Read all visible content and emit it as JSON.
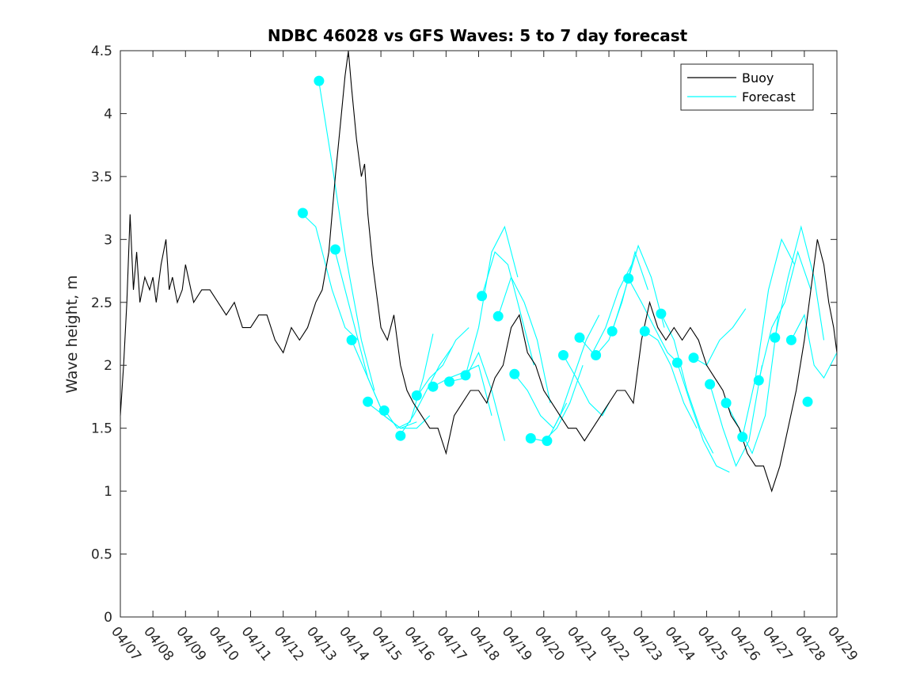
{
  "chart_data": {
    "type": "line",
    "title": "NDBC 46028 vs GFS Waves: 5 to 7 day forecast",
    "xlabel": "",
    "ylabel": "Wave height, m",
    "xlim": [
      0,
      22
    ],
    "ylim": [
      0,
      4.5
    ],
    "x_tick_labels": [
      "04/07",
      "04/08",
      "04/09",
      "04/10",
      "04/11",
      "04/12",
      "04/13",
      "04/14",
      "04/15",
      "04/16",
      "04/17",
      "04/18",
      "04/19",
      "04/20",
      "04/21",
      "04/22",
      "04/23",
      "04/24",
      "04/25",
      "04/26",
      "04/27",
      "04/28",
      "04/29"
    ],
    "y_ticks": [
      0,
      0.5,
      1,
      1.5,
      2,
      2.5,
      3,
      3.5,
      4,
      4.5
    ],
    "y_tick_labels": [
      "0",
      "0.5",
      "1",
      "1.5",
      "2",
      "2.5",
      "3",
      "3.5",
      "4",
      "4.5"
    ],
    "grid": false,
    "legend_position": "top-right",
    "colors": {
      "buoy": "#000000",
      "forecast": "#00ffff",
      "axes": "#262626"
    },
    "legend": [
      {
        "label": "Buoy",
        "series": "buoy"
      },
      {
        "label": "Forecast",
        "series": "forecast"
      }
    ],
    "series": [
      {
        "name": "Buoy",
        "color": "#000000",
        "x": [
          0,
          0.1,
          0.2,
          0.3,
          0.4,
          0.5,
          0.6,
          0.75,
          0.9,
          1.0,
          1.1,
          1.25,
          1.4,
          1.5,
          1.6,
          1.75,
          1.9,
          2.0,
          2.25,
          2.5,
          2.75,
          3.0,
          3.25,
          3.5,
          3.75,
          4.0,
          4.25,
          4.5,
          4.75,
          5.0,
          5.25,
          5.5,
          5.75,
          6.0,
          6.2,
          6.4,
          6.6,
          6.75,
          6.9,
          7.0,
          7.1,
          7.25,
          7.4,
          7.5,
          7.6,
          7.75,
          7.9,
          8.0,
          8.2,
          8.4,
          8.6,
          8.8,
          9.0,
          9.25,
          9.5,
          9.75,
          10.0,
          10.25,
          10.5,
          10.75,
          11.0,
          11.25,
          11.5,
          11.75,
          12.0,
          12.25,
          12.5,
          12.75,
          13.0,
          13.25,
          13.5,
          13.75,
          14.0,
          14.25,
          14.5,
          14.75,
          15.0,
          15.25,
          15.5,
          15.75,
          16.0,
          16.25,
          16.5,
          16.75,
          17.0,
          17.25,
          17.5,
          17.75,
          18.0,
          18.25,
          18.5,
          18.75,
          19.0,
          19.25,
          19.5,
          19.75,
          20.0,
          20.25,
          20.5,
          20.75,
          21.0,
          21.2,
          21.4,
          21.6,
          21.75,
          21.9,
          22.0
        ],
        "values": [
          1.6,
          2.0,
          2.5,
          3.2,
          2.6,
          2.9,
          2.5,
          2.7,
          2.6,
          2.7,
          2.5,
          2.8,
          3.0,
          2.6,
          2.7,
          2.5,
          2.6,
          2.8,
          2.5,
          2.6,
          2.6,
          2.5,
          2.4,
          2.5,
          2.3,
          2.3,
          2.4,
          2.4,
          2.2,
          2.1,
          2.3,
          2.2,
          2.3,
          2.5,
          2.6,
          2.9,
          3.5,
          3.9,
          4.3,
          4.5,
          4.2,
          3.8,
          3.5,
          3.6,
          3.2,
          2.8,
          2.5,
          2.3,
          2.2,
          2.4,
          2.0,
          1.8,
          1.7,
          1.6,
          1.5,
          1.5,
          1.3,
          1.6,
          1.7,
          1.8,
          1.8,
          1.7,
          1.9,
          2.0,
          2.3,
          2.4,
          2.1,
          2.0,
          1.8,
          1.7,
          1.6,
          1.5,
          1.5,
          1.4,
          1.5,
          1.6,
          1.7,
          1.8,
          1.8,
          1.7,
          2.2,
          2.5,
          2.3,
          2.2,
          2.3,
          2.2,
          2.3,
          2.2,
          2.0,
          1.9,
          1.8,
          1.6,
          1.5,
          1.3,
          1.2,
          1.2,
          1.0,
          1.2,
          1.5,
          1.8,
          2.2,
          2.6,
          3.0,
          2.8,
          2.5,
          2.3,
          2.1
        ]
      },
      {
        "name": "Forecast",
        "color": "#00ffff",
        "segments": [
          {
            "x": [
              5.6,
              6.0,
              6.5,
              6.9,
              7.3
            ],
            "values": [
              3.2,
              3.1,
              2.6,
              2.3,
              2.2
            ]
          },
          {
            "x": [
              6.1,
              6.5,
              6.9,
              7.4,
              7.8
            ],
            "values": [
              4.25,
              3.6,
              2.9,
              2.2,
              1.8
            ]
          },
          {
            "x": [
              6.6,
              7.1,
              7.6,
              8.1,
              8.6
            ],
            "values": [
              2.9,
              2.4,
              1.9,
              1.6,
              1.5
            ]
          },
          {
            "x": [
              7.1,
              7.6,
              8.1,
              8.6,
              9.1
            ],
            "values": [
              2.2,
              1.9,
              1.6,
              1.5,
              1.55
            ]
          },
          {
            "x": [
              7.6,
              8.1,
              8.6,
              9.1,
              9.5
            ],
            "values": [
              1.7,
              1.6,
              1.5,
              1.5,
              1.6
            ]
          },
          {
            "x": [
              8.1,
              8.5,
              8.9,
              9.3,
              9.6
            ],
            "values": [
              1.65,
              1.5,
              1.55,
              1.9,
              2.25
            ]
          },
          {
            "x": [
              8.6,
              9.0,
              9.4,
              9.8,
              10.2
            ],
            "values": [
              1.45,
              1.6,
              1.8,
              2.0,
              2.15
            ]
          },
          {
            "x": [
              9.1,
              9.5,
              9.9,
              10.3,
              10.7
            ],
            "values": [
              1.75,
              1.9,
              2.0,
              2.2,
              2.3
            ]
          },
          {
            "x": [
              9.6,
              10.1,
              10.6,
              11.0,
              11.4
            ],
            "values": [
              1.83,
              1.9,
              1.95,
              2.0,
              1.6
            ]
          },
          {
            "x": [
              10.1,
              10.6,
              11.0,
              11.4,
              11.8
            ],
            "values": [
              1.87,
              1.9,
              2.1,
              1.8,
              1.4
            ]
          },
          {
            "x": [
              10.6,
              11.0,
              11.4,
              11.8,
              12.2
            ],
            "values": [
              1.92,
              2.3,
              2.9,
              3.1,
              2.7
            ]
          },
          {
            "x": [
              11.1,
              11.5,
              11.9,
              12.3,
              12.7
            ],
            "values": [
              2.55,
              2.9,
              2.8,
              2.4,
              2.0
            ]
          },
          {
            "x": [
              11.6,
              12.0,
              12.4,
              12.8,
              13.2
            ],
            "values": [
              2.39,
              2.7,
              2.5,
              2.2,
              1.7
            ]
          },
          {
            "x": [
              12.1,
              12.5,
              12.9,
              13.3,
              13.7
            ],
            "values": [
              1.93,
              1.8,
              1.6,
              1.5,
              1.7
            ]
          },
          {
            "x": [
              12.6,
              13.0,
              13.4,
              13.8,
              14.2
            ],
            "values": [
              1.42,
              1.4,
              1.5,
              1.7,
              2.0
            ]
          },
          {
            "x": [
              13.1,
              13.5,
              13.9,
              14.3,
              14.7
            ],
            "values": [
              1.4,
              1.6,
              1.9,
              2.2,
              2.4
            ]
          },
          {
            "x": [
              13.6,
              14.0,
              14.4,
              14.8,
              15.0
            ],
            "values": [
              2.08,
              1.9,
              1.7,
              1.6,
              1.7
            ]
          },
          {
            "x": [
              14.1,
              14.5,
              14.9,
              15.3,
              15.7
            ],
            "values": [
              2.22,
              2.1,
              2.3,
              2.6,
              2.8
            ]
          },
          {
            "x": [
              14.6,
              15.0,
              15.4,
              15.8,
              16.2
            ],
            "values": [
              2.08,
              2.2,
              2.5,
              2.9,
              2.6
            ]
          },
          {
            "x": [
              15.1,
              15.5,
              15.9,
              16.3,
              16.7
            ],
            "values": [
              2.27,
              2.6,
              2.95,
              2.7,
              2.3
            ]
          },
          {
            "x": [
              15.6,
              16.0,
              16.4,
              16.8,
              17.2
            ],
            "values": [
              2.69,
              2.5,
              2.3,
              2.1,
              2.0
            ]
          },
          {
            "x": [
              16.1,
              16.5,
              16.9,
              17.3,
              17.7
            ],
            "values": [
              2.27,
              2.2,
              2.0,
              1.7,
              1.5
            ]
          },
          {
            "x": [
              16.6,
              17.0,
              17.4,
              17.8,
              18.2
            ],
            "values": [
              2.41,
              2.2,
              1.8,
              1.5,
              1.3
            ]
          },
          {
            "x": [
              17.1,
              17.5,
              17.9,
              18.3,
              18.7
            ],
            "values": [
              2.02,
              1.7,
              1.4,
              1.2,
              1.15
            ]
          },
          {
            "x": [
              17.6,
              18.0,
              18.4,
              18.8,
              19.2
            ],
            "values": [
              2.06,
              2.0,
              2.2,
              2.3,
              2.45
            ]
          },
          {
            "x": [
              18.1,
              18.5,
              18.9,
              19.3,
              19.7
            ],
            "values": [
              1.85,
              1.5,
              1.2,
              1.4,
              2.0
            ]
          },
          {
            "x": [
              18.6,
              19.0,
              19.4,
              19.8,
              20.2
            ],
            "values": [
              1.7,
              1.5,
              1.3,
              1.6,
              2.4
            ]
          },
          {
            "x": [
              19.1,
              19.5,
              19.9,
              20.3,
              20.7
            ],
            "values": [
              1.43,
              1.9,
              2.6,
              3.0,
              2.8
            ]
          },
          {
            "x": [
              19.6,
              20.0,
              20.4,
              20.8,
              21.2
            ],
            "values": [
              1.88,
              2.3,
              2.5,
              2.9,
              2.6
            ]
          },
          {
            "x": [
              20.1,
              20.5,
              20.9,
              21.3,
              21.6
            ],
            "values": [
              2.22,
              2.7,
              3.1,
              2.7,
              2.2
            ]
          },
          {
            "x": [
              20.6,
              21.0,
              21.3,
              21.6,
              22.0
            ],
            "values": [
              2.2,
              2.4,
              2.0,
              1.9,
              2.1
            ]
          }
        ],
        "markers": {
          "x": [
            5.6,
            6.1,
            6.6,
            7.1,
            7.6,
            8.1,
            8.6,
            9.1,
            9.6,
            10.1,
            10.6,
            11.1,
            11.6,
            12.1,
            12.6,
            13.1,
            13.6,
            14.1,
            14.6,
            15.1,
            15.6,
            16.1,
            16.6,
            17.1,
            17.6,
            18.1,
            18.6,
            19.1,
            19.6,
            20.1,
            20.6,
            21.1
          ],
          "values": [
            3.21,
            4.26,
            2.92,
            2.2,
            1.71,
            1.64,
            1.44,
            1.76,
            1.83,
            1.87,
            1.92,
            2.55,
            2.39,
            1.93,
            1.42,
            1.4,
            2.08,
            2.22,
            2.08,
            2.27,
            2.69,
            2.27,
            2.41,
            2.02,
            2.06,
            1.85,
            1.7,
            1.43,
            1.88,
            2.22,
            2.2,
            1.71
          ]
        }
      }
    ]
  }
}
